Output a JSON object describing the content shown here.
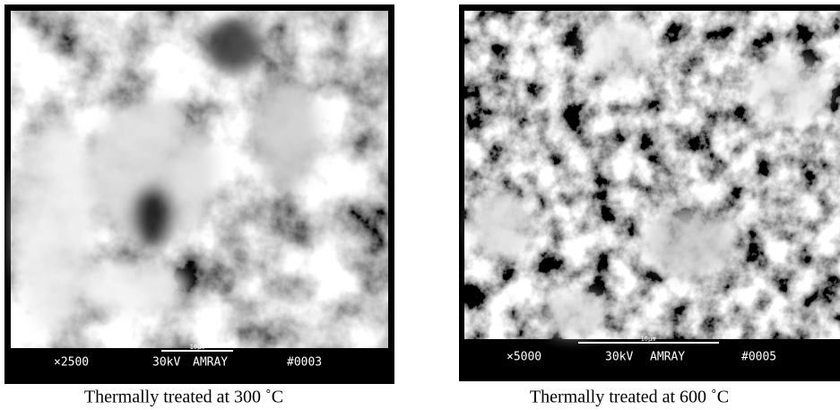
{
  "panels": [
    {
      "magnification": "×2500",
      "scale_bar": "10μm",
      "voltage": "30kV",
      "instrument": "AMRAY",
      "image_id": "#0003",
      "caption": "Thermally treated at 300 ˚C"
    },
    {
      "magnification": "×5000",
      "scale_bar": "10μm",
      "voltage": "30kV",
      "instrument": "AMRAY",
      "image_id": "#0005",
      "caption": "Thermally treated at 600 ˚C"
    }
  ]
}
